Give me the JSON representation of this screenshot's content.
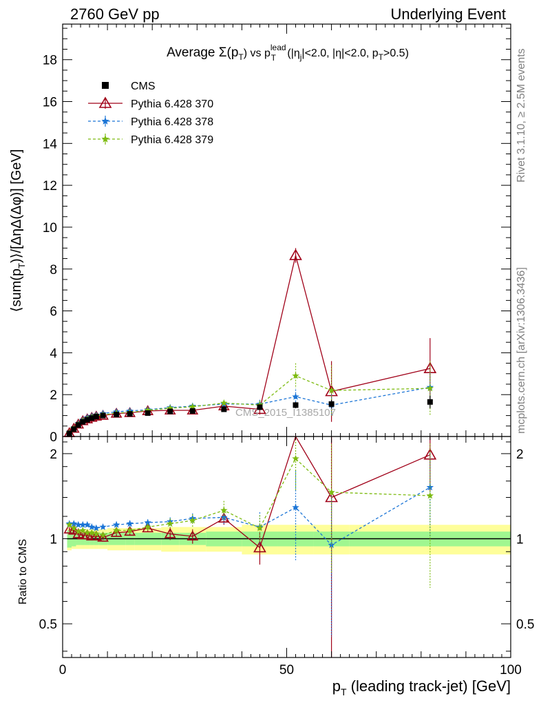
{
  "header": {
    "left": "2760 GeV pp",
    "right": "Underlying Event"
  },
  "plot_title": "Average Σ(p_T) vs p_T^lead (|η_j|<2.0, |η|<2.0, p_T>0.5)",
  "side_labels": {
    "rivet": "Rivet 3.1.10, ≥ 2.5M events",
    "mcplots": "mcplots.cern.ch [arXiv:1306.3436]"
  },
  "watermark": "CMS_2015_I1385107",
  "colors": {
    "cms": "#000000",
    "p370": "#a00018",
    "p378": "#1a74d6",
    "p379": "#7dbb10",
    "band_green": "#a0f790",
    "band_yellow": "#fefe9a"
  },
  "chart_data": [
    {
      "type": "line",
      "panel": "main",
      "ylabel": "⟨sum(p_T)⟩/[ΔηΔ(Δφ)] [GeV]",
      "xlim": [
        0,
        100
      ],
      "ylim": [
        0,
        19.7
      ],
      "yticks": [
        0,
        2,
        4,
        6,
        8,
        10,
        12,
        14,
        16,
        18
      ],
      "legend_position": "top-left",
      "x": [
        1.5,
        2.5,
        3.5,
        4.5,
        5.5,
        6.5,
        7.5,
        9.0,
        12.0,
        15.0,
        19.0,
        24.0,
        29.0,
        36.0,
        44.0,
        52.0,
        60.0,
        82.0
      ],
      "series": [
        {
          "name": "CMS",
          "marker": "square",
          "values": [
            0.15,
            0.35,
            0.55,
            0.7,
            0.8,
            0.88,
            0.95,
            1.0,
            1.05,
            1.08,
            1.12,
            1.2,
            1.22,
            1.3,
            1.4,
            1.5,
            1.55,
            1.65
          ],
          "errors": [
            0.02,
            0.03,
            0.03,
            0.03,
            0.04,
            0.04,
            0.04,
            0.05,
            0.05,
            0.05,
            0.06,
            0.07,
            0.08,
            0.1,
            0.12,
            0.15,
            0.2,
            0.3
          ]
        },
        {
          "name": "Pythia 6.428 370",
          "marker": "triangle",
          "values": [
            0.17,
            0.38,
            0.58,
            0.74,
            0.83,
            0.9,
            0.96,
            1.0,
            1.1,
            1.13,
            1.22,
            1.25,
            1.25,
            1.45,
            1.3,
            8.65,
            2.15,
            3.25
          ],
          "errors": [
            0.02,
            0.03,
            0.03,
            0.03,
            0.04,
            0.04,
            0.04,
            0.05,
            0.05,
            0.05,
            0.06,
            0.1,
            0.12,
            0.15,
            0.25,
            0.35,
            1.45,
            1.45
          ]
        },
        {
          "name": "Pythia 6.428 378",
          "marker": "star",
          "values": [
            0.18,
            0.4,
            0.62,
            0.79,
            0.9,
            0.97,
            1.03,
            1.1,
            1.18,
            1.22,
            1.28,
            1.38,
            1.45,
            1.55,
            1.55,
            1.9,
            1.5,
            2.35
          ],
          "errors": [
            0.02,
            0.03,
            0.03,
            0.03,
            0.04,
            0.04,
            0.04,
            0.05,
            0.05,
            0.05,
            0.06,
            0.07,
            0.08,
            0.1,
            0.2,
            0.35,
            0.5,
            0.7
          ]
        },
        {
          "name": "Pythia 6.428 379",
          "marker": "star",
          "values": [
            0.17,
            0.38,
            0.58,
            0.75,
            0.84,
            0.92,
            0.98,
            1.03,
            1.12,
            1.15,
            1.25,
            1.35,
            1.42,
            1.6,
            1.5,
            2.9,
            2.2,
            2.3
          ],
          "errors": [
            0.02,
            0.03,
            0.03,
            0.03,
            0.04,
            0.04,
            0.04,
            0.05,
            0.05,
            0.05,
            0.06,
            0.07,
            0.08,
            0.12,
            0.2,
            0.6,
            1.2,
            1.3
          ]
        }
      ]
    },
    {
      "type": "line",
      "panel": "ratio",
      "ylabel": "Ratio to CMS",
      "xlabel": "p_T (leading track-jet) [GeV]",
      "xlim": [
        0,
        100
      ],
      "ylim": [
        0.38,
        2.3
      ],
      "y_scale": "log",
      "yticks": [
        0.5,
        1,
        2
      ],
      "xticks": [
        0,
        50,
        100
      ],
      "x": [
        1.5,
        2.5,
        3.5,
        4.5,
        5.5,
        6.5,
        7.5,
        9.0,
        12.0,
        15.0,
        19.0,
        24.0,
        29.0,
        36.0,
        44.0,
        52.0,
        60.0,
        82.0
      ],
      "band": {
        "x_edges": [
          1,
          2,
          3,
          4,
          5,
          6,
          7,
          8,
          10,
          14,
          16,
          22,
          26,
          32,
          40,
          48,
          56,
          64,
          100
        ],
        "inner": [
          0.07,
          0.06,
          0.05,
          0.05,
          0.05,
          0.05,
          0.05,
          0.05,
          0.05,
          0.05,
          0.05,
          0.05,
          0.05,
          0.06,
          0.06,
          0.06,
          0.06,
          0.06
        ],
        "outer": [
          0.09,
          0.08,
          0.08,
          0.08,
          0.08,
          0.08,
          0.08,
          0.08,
          0.09,
          0.09,
          0.09,
          0.1,
          0.1,
          0.1,
          0.12,
          0.12,
          0.12,
          0.12
        ]
      },
      "series": [
        {
          "name": "Pythia 6.428 370",
          "values": [
            1.08,
            1.07,
            1.04,
            1.03,
            1.03,
            1.02,
            1.02,
            1.01,
            1.05,
            1.06,
            1.09,
            1.04,
            1.02,
            1.18,
            0.93,
            5.5,
            1.4,
            1.98
          ],
          "errors": [
            0.02,
            0.02,
            0.02,
            0.02,
            0.02,
            0.02,
            0.02,
            0.02,
            0.03,
            0.03,
            0.03,
            0.05,
            0.06,
            0.06,
            0.12,
            0.3,
            1.2,
            0.5
          ]
        },
        {
          "name": "Pythia 6.428 378",
          "values": [
            1.13,
            1.13,
            1.12,
            1.12,
            1.12,
            1.1,
            1.09,
            1.1,
            1.12,
            1.13,
            1.14,
            1.15,
            1.18,
            1.19,
            1.1,
            1.29,
            0.95,
            1.52
          ],
          "errors": [
            0.02,
            0.02,
            0.02,
            0.02,
            0.02,
            0.02,
            0.02,
            0.02,
            0.03,
            0.03,
            0.03,
            0.04,
            0.05,
            0.06,
            0.14,
            0.45,
            0.5,
            0.5
          ]
        },
        {
          "name": "Pythia 6.428 379",
          "values": [
            1.12,
            1.09,
            1.06,
            1.07,
            1.05,
            1.05,
            1.04,
            1.03,
            1.07,
            1.07,
            1.1,
            1.13,
            1.16,
            1.26,
            1.09,
            1.92,
            1.46,
            1.42
          ],
          "errors": [
            0.02,
            0.02,
            0.02,
            0.02,
            0.02,
            0.02,
            0.02,
            0.02,
            0.03,
            0.03,
            0.03,
            0.05,
            0.06,
            0.1,
            0.12,
            0.45,
            0.7,
            0.75
          ]
        }
      ]
    }
  ]
}
